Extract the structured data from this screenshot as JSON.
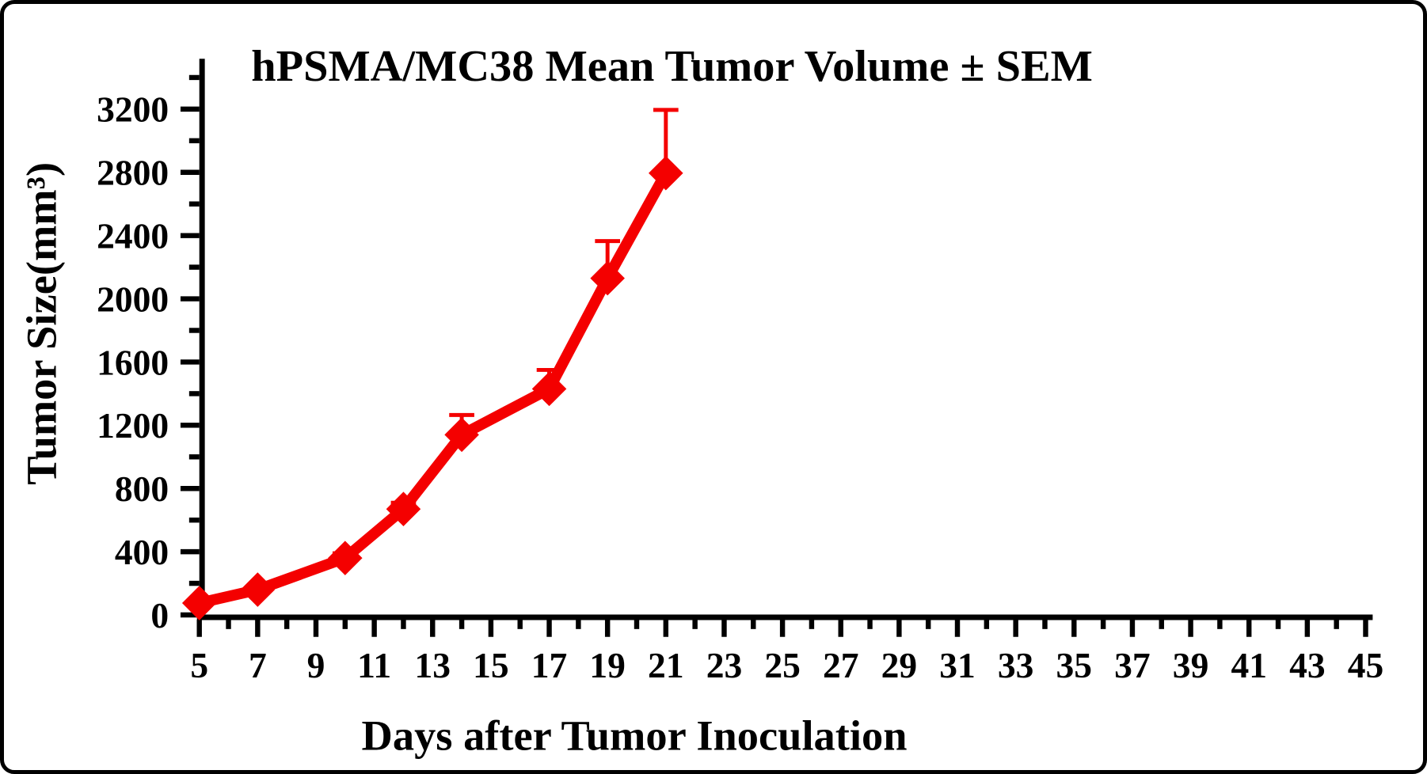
{
  "chart_data": {
    "type": "line",
    "title": "hPSMA/MC38 Mean Tumor Volume ± SEM",
    "xlabel": "Days after Tumor Inoculation",
    "ylabel": "Tumor Size(mm³)",
    "grid": false,
    "legend": "none",
    "x_axis": {
      "min": 5,
      "max": 45,
      "labeled_ticks": [
        5,
        7,
        9,
        11,
        13,
        15,
        17,
        19,
        21,
        23,
        25,
        27,
        29,
        31,
        33,
        35,
        37,
        39,
        41,
        43,
        45
      ],
      "minor_tick_every": 1
    },
    "y_axis": {
      "min": 0,
      "max": 3400,
      "labeled_ticks": [
        0,
        400,
        800,
        1200,
        1600,
        2000,
        2400,
        2800,
        3200
      ],
      "minor_tick_every": 200
    },
    "series": [
      {
        "name": "hPSMA/MC38 mean tumor volume",
        "marker": "diamond",
        "color": "#f40000",
        "error_bars": "upper",
        "x": [
          5,
          7,
          10,
          12,
          14,
          17,
          19,
          21
        ],
        "y_mean": [
          75,
          160,
          360,
          670,
          1140,
          1430,
          2130,
          2795
        ],
        "y_sem": [
          10,
          15,
          30,
          40,
          125,
          120,
          235,
          400
        ]
      }
    ],
    "axis_color": "#000000",
    "background_color": "#ffffff"
  }
}
